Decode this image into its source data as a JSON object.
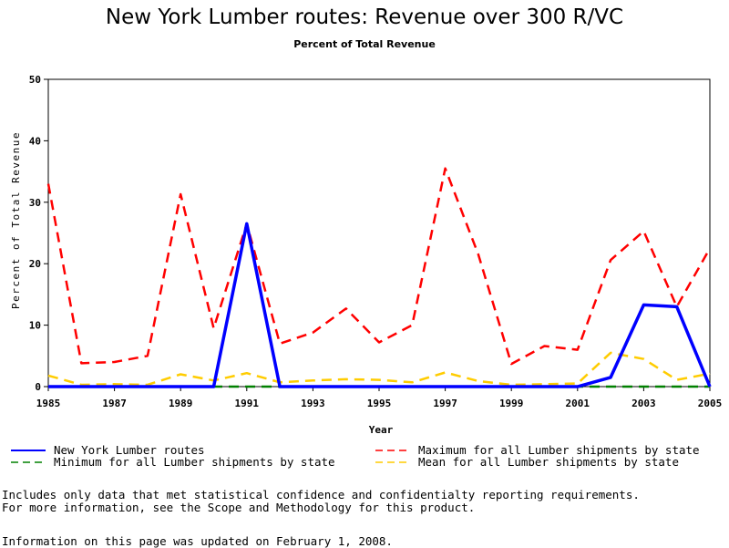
{
  "chart_data": {
    "type": "line",
    "title": "New York Lumber routes: Revenue over 300 R/VC",
    "subtitle": "Percent of Total Revenue",
    "xlabel": "Year",
    "ylabel": "Percent of Total Revenue",
    "x": [
      1985,
      1986,
      1987,
      1988,
      1989,
      1990,
      1991,
      1992,
      1993,
      1994,
      1995,
      1996,
      1997,
      1998,
      1999,
      2000,
      2001,
      2002,
      2003,
      2004,
      2005
    ],
    "xticks": [
      "1985",
      "1987",
      "1989",
      "1991",
      "1993",
      "1995",
      "1997",
      "1999",
      "2001",
      "2003",
      "2005"
    ],
    "yticks": [
      "0",
      "10",
      "20",
      "30",
      "40",
      "50"
    ],
    "xlim": [
      1985,
      2005
    ],
    "ylim": [
      0,
      50
    ],
    "grid": false,
    "legend_placement": "bottom",
    "series": [
      {
        "name": "New York Lumber routes",
        "color": "#0000ff",
        "style": "solid",
        "values": [
          0,
          0,
          0,
          0,
          0,
          0,
          26.5,
          0,
          0,
          0,
          0,
          0,
          0,
          0,
          0,
          0,
          0,
          1.5,
          13.3,
          13.0,
          0
        ]
      },
      {
        "name": "Minimum for all Lumber shipments by state",
        "color": "#008000",
        "style": "dashed",
        "values": [
          0,
          0,
          0,
          0,
          0,
          0,
          0,
          0,
          0,
          0,
          0,
          0,
          0,
          0,
          0,
          0,
          0,
          0,
          0,
          0,
          0
        ]
      },
      {
        "name": "Maximum for all Lumber shipments by state",
        "color": "#ff0000",
        "style": "dashed",
        "values": [
          33.0,
          3.8,
          4.0,
          5.0,
          31.3,
          9.5,
          26.5,
          7.0,
          8.8,
          12.7,
          7.2,
          10.0,
          35.5,
          21.5,
          3.7,
          6.6,
          6.0,
          20.6,
          25.3,
          13.0,
          22.5
        ]
      },
      {
        "name": "Mean for all Lumber shipments by state",
        "color": "#ffcc00",
        "style": "dashed",
        "values": [
          1.8,
          0.3,
          0.4,
          0.3,
          2.0,
          1.0,
          2.2,
          0.7,
          1.0,
          1.2,
          1.1,
          0.7,
          2.3,
          0.9,
          0.3,
          0.4,
          0.5,
          5.5,
          4.5,
          1.1,
          2.1
        ]
      }
    ]
  },
  "notes": {
    "line1": "Includes only data that met statistical confidence and confidentialty reporting requirements.",
    "line2": "For more information, see the Scope and Methodology for this product.",
    "updated": "Information on this page was updated on February 1, 2008."
  }
}
